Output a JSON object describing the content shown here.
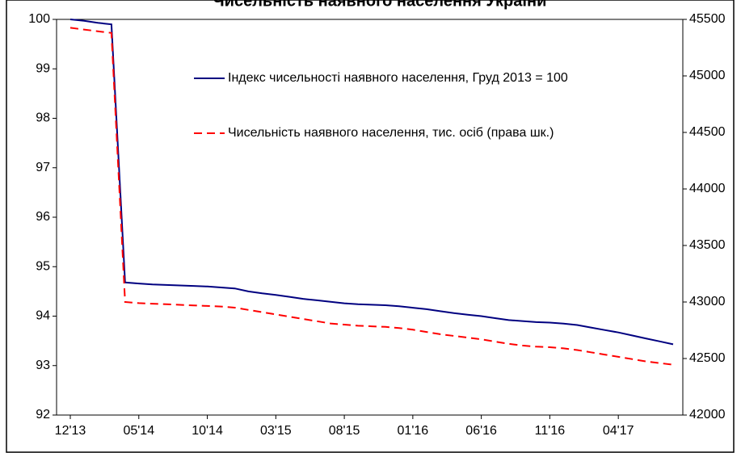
{
  "chart_data": {
    "type": "line",
    "title": "Чисельність наявного населення України",
    "categories": [
      "12'13",
      null,
      null,
      null,
      null,
      "05'14",
      null,
      null,
      null,
      null,
      "10'14",
      null,
      null,
      null,
      null,
      "03'15",
      null,
      null,
      null,
      null,
      "08'15",
      null,
      null,
      null,
      null,
      "01'16",
      null,
      null,
      null,
      null,
      "06'16",
      null,
      null,
      null,
      null,
      "11'16",
      null,
      null,
      null,
      null,
      "04'17",
      null,
      null,
      null,
      null
    ],
    "series": [
      {
        "name": "Індекс чисельності наявного населення, Груд 2013 = 100",
        "color": "#000080",
        "axis": "y",
        "values": [
          100.0,
          99.97,
          99.93,
          99.9,
          94.68,
          94.66,
          94.64,
          94.63,
          94.62,
          94.61,
          94.6,
          94.58,
          94.56,
          94.5,
          94.46,
          94.43,
          94.39,
          94.35,
          94.32,
          94.29,
          94.26,
          94.24,
          94.23,
          94.22,
          94.2,
          94.17,
          94.14,
          94.1,
          94.06,
          94.03,
          94.0,
          93.96,
          93.92,
          93.9,
          93.88,
          93.87,
          93.85,
          93.82,
          93.77,
          93.72,
          93.67,
          93.61,
          93.55,
          93.49,
          93.43
        ]
      },
      {
        "name": "Чисельність наявного населення, тис. осіб (права шк.)",
        "color": "#ff0000",
        "axis": "y2",
        "dashed": true,
        "values": [
          45426,
          45410,
          45395,
          45380,
          43000,
          42990,
          42985,
          42980,
          42975,
          42970,
          42965,
          42960,
          42950,
          42930,
          42910,
          42890,
          42870,
          42850,
          42830,
          42810,
          42800,
          42790,
          42785,
          42780,
          42770,
          42755,
          42735,
          42715,
          42700,
          42685,
          42670,
          42650,
          42630,
          42615,
          42605,
          42600,
          42590,
          42575,
          42555,
          42535,
          42515,
          42495,
          42475,
          42460,
          42445
        ]
      }
    ],
    "ylim": [
      92,
      100
    ],
    "yticks": [
      92,
      93,
      94,
      95,
      96,
      97,
      98,
      99,
      100
    ],
    "y2lim": [
      42000,
      45500
    ],
    "y2ticks": [
      42000,
      42500,
      43000,
      43500,
      44000,
      44500,
      45000,
      45500
    ],
    "grid": false
  }
}
